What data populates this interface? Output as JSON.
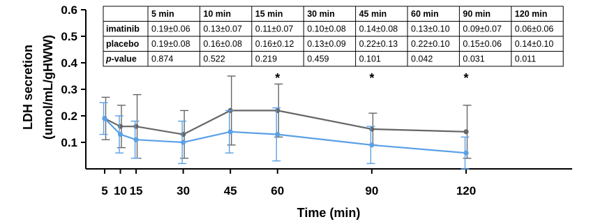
{
  "chart_data": {
    "type": "line",
    "xlabel": "Time (min)",
    "ylabel_line1": "LDH secretion",
    "ylabel_line2": "(umol/mL/gHWW)",
    "x": [
      5,
      10,
      15,
      30,
      45,
      60,
      90,
      120
    ],
    "x_tick_labels": [
      "5",
      "10",
      "15",
      "30",
      "45",
      "60",
      "90",
      "120"
    ],
    "xlim": [
      0,
      120
    ],
    "ylim": [
      0,
      0.6
    ],
    "y_ticks": [
      0.1,
      0.2,
      0.3,
      0.4,
      0.5,
      0.6
    ],
    "y_tick_labels": [
      "0.1",
      "0.2",
      "0.3",
      "0.4",
      "0.5",
      "0.6"
    ],
    "grid": false,
    "significance_at_x": [
      60,
      90,
      120
    ],
    "significance_marker": "*",
    "series": [
      {
        "name": "imatinib",
        "color": "#5aa0e6",
        "values": [
          0.19,
          0.13,
          0.11,
          0.1,
          0.14,
          0.13,
          0.09,
          0.06
        ],
        "sd": [
          0.06,
          0.07,
          0.07,
          0.08,
          0.08,
          0.1,
          0.07,
          0.06
        ]
      },
      {
        "name": "placebo",
        "color": "#666666",
        "values": [
          0.19,
          0.16,
          0.16,
          0.13,
          0.22,
          0.22,
          0.15,
          0.14
        ],
        "sd": [
          0.08,
          0.08,
          0.12,
          0.09,
          0.13,
          0.1,
          0.06,
          0.1
        ]
      }
    ],
    "table": {
      "header": [
        "",
        "5 min",
        "10 min",
        "15 min",
        "30 min",
        "45 min",
        "60 min",
        "90 min",
        "120 min"
      ],
      "rows": [
        {
          "label": "imatinib",
          "label_color": "#5aa0e6",
          "cells": [
            "0.19±0.06",
            "0.13±0.07",
            "0.11±0.07",
            "0.10±0.08",
            "0.14±0.08",
            "0.13±0.10",
            "0.09±0.07",
            "0.06±0.06"
          ]
        },
        {
          "label": "placebo",
          "label_color": "#8a8a8a",
          "cells": [
            "0.19±0.08",
            "0.16±0.08",
            "0.16±0.12",
            "0.13±0.09",
            "0.22±0.13",
            "0.22±0.10",
            "0.15±0.06",
            "0.14±0.10"
          ]
        },
        {
          "label_italic": "p",
          "label_rest": "-value",
          "label_color": "#000000",
          "cells": [
            "0.874",
            "0.522",
            "0.219",
            "0.459",
            "0.101",
            "0.042",
            "0.031",
            "0.011"
          ]
        }
      ]
    }
  }
}
